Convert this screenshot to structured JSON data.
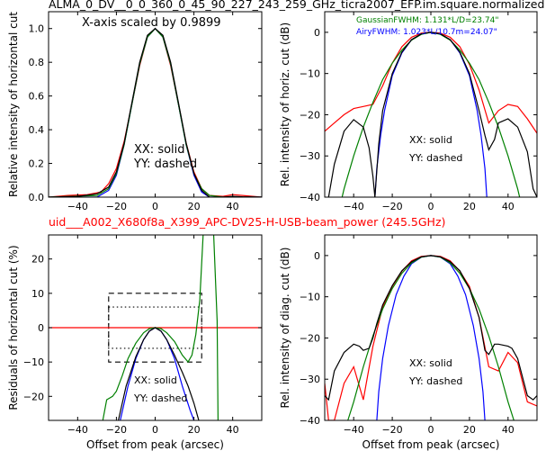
{
  "figure": {
    "title": "ALMA_0_DV__0_0_360_0_45_90_227_243_259_GHz_ticra2007_EFP.im.square.normalized",
    "subtitle": "uid___A002_X680f8a_X399_APC-DV25-H-USB-beam_power (245.5GHz)",
    "subtitle_color": "#ff0000"
  },
  "chart_data": [
    {
      "id": "horizontal_profile",
      "type": "line",
      "ylabel": "Relative intensity of horizontal cut",
      "xlim": [
        -55,
        55
      ],
      "ylim": [
        0,
        1.1
      ],
      "xticks": [
        -40,
        -20,
        0,
        20,
        40
      ],
      "yticks": [
        0.0,
        0.2,
        0.4,
        0.6,
        0.8,
        1.0
      ],
      "ytick_labels": [
        "0.0",
        "0.2",
        "0.4",
        "0.6",
        "0.8",
        "1.0"
      ],
      "annotation": "X-axis scaled by 0.9899",
      "legend_text": [
        "XX: solid",
        "YY: dashed"
      ],
      "series": [
        {
          "color": "#ff0000",
          "x": [
            -55,
            -45,
            -35,
            -28,
            -24,
            -20,
            -16,
            -12,
            -8,
            -4,
            0,
            4,
            8,
            12,
            16,
            20,
            24,
            28,
            35,
            40,
            45,
            55
          ],
          "y": [
            0.0,
            0.01,
            0.015,
            0.03,
            0.08,
            0.17,
            0.33,
            0.55,
            0.78,
            0.95,
            1.0,
            0.95,
            0.78,
            0.55,
            0.32,
            0.15,
            0.05,
            0.01,
            0.005,
            0.015,
            0.01,
            0.0
          ]
        },
        {
          "color": "#0000ff",
          "x": [
            -55,
            -30,
            -24,
            -20,
            -16,
            -12,
            -8,
            -4,
            0,
            4,
            8,
            12,
            16,
            20,
            24,
            28,
            55
          ],
          "y": [
            0.0,
            0.0,
            0.04,
            0.13,
            0.31,
            0.55,
            0.79,
            0.95,
            1.0,
            0.95,
            0.79,
            0.55,
            0.31,
            0.13,
            0.03,
            0.0,
            0.0
          ]
        },
        {
          "color": "#008000",
          "x": [
            -55,
            -30,
            -24,
            -20,
            -16,
            -12,
            -8,
            -4,
            0,
            4,
            8,
            12,
            16,
            20,
            24,
            28,
            35,
            55
          ],
          "y": [
            0.0,
            0.01,
            0.05,
            0.14,
            0.31,
            0.55,
            0.79,
            0.95,
            1.0,
            0.95,
            0.79,
            0.55,
            0.31,
            0.14,
            0.05,
            0.01,
            0.0,
            0.0
          ]
        },
        {
          "color": "#000000",
          "x": [
            -55,
            -40,
            -30,
            -24,
            -20,
            -16,
            -12,
            -8,
            -4,
            0,
            4,
            8,
            12,
            16,
            20,
            24,
            28,
            35,
            40,
            45,
            55
          ],
          "y": [
            0.0,
            0.005,
            0.02,
            0.06,
            0.15,
            0.32,
            0.56,
            0.8,
            0.96,
            1.0,
            0.96,
            0.8,
            0.56,
            0.32,
            0.14,
            0.04,
            0.0,
            0.0,
            0.005,
            0.002,
            0.0
          ]
        }
      ]
    },
    {
      "id": "horizontal_db",
      "type": "line",
      "ylabel": "Rel. intensity of horiz. cut (dB)",
      "xlim": [
        -55,
        55
      ],
      "ylim": [
        -40,
        5
      ],
      "xticks": [
        -40,
        -20,
        0,
        20,
        40
      ],
      "yticks": [
        -40,
        -30,
        -20,
        -10,
        0
      ],
      "ytick_labels": [
        "−40",
        "−30",
        "−20",
        "−10",
        "0"
      ],
      "gaussian_label": "GaussianFWHM: 1.131*L/D=23.74\"",
      "gaussian_color": "#008000",
      "airy_label": "AiryFWHM: 1.023*L/10.7m=24.07\"",
      "airy_color": "#0000ff",
      "legend_text": [
        "XX: solid",
        "YY: dashed"
      ],
      "series": [
        {
          "color": "#ff0000",
          "x": [
            -55,
            -50,
            -45,
            -40,
            -35,
            -30,
            -25,
            -20,
            -15,
            -10,
            -5,
            0,
            5,
            10,
            15,
            20,
            25,
            30,
            35,
            40,
            45,
            50,
            55
          ],
          "y": [
            -24,
            -22,
            -20,
            -18.5,
            -18,
            -17.5,
            -13,
            -7.5,
            -3.5,
            -1.2,
            -0.2,
            0,
            -0.2,
            -1.2,
            -3.5,
            -7.8,
            -14,
            -22,
            -19,
            -17.5,
            -18,
            -21,
            -24.5
          ]
        },
        {
          "color": "#0000ff",
          "x": [
            -29,
            -28,
            -26,
            -24,
            -20,
            -15,
            -10,
            -5,
            0,
            5,
            10,
            15,
            20,
            24,
            26,
            28,
            29
          ],
          "y": [
            -40,
            -33,
            -25,
            -19,
            -10.5,
            -5,
            -1.8,
            -0.4,
            0,
            -0.4,
            -1.8,
            -5,
            -10.5,
            -19,
            -25,
            -33,
            -40
          ]
        },
        {
          "color": "#008000",
          "x": [
            -50,
            -45,
            -40,
            -35,
            -30,
            -25,
            -20,
            -15,
            -10,
            -5,
            0,
            5,
            10,
            15,
            20,
            25,
            30,
            35,
            40,
            45,
            50
          ],
          "y": [
            -48,
            -38,
            -30,
            -23,
            -17,
            -11.5,
            -7.5,
            -4.3,
            -1.9,
            -0.5,
            0,
            -0.5,
            -1.9,
            -4.3,
            -7.5,
            -11.5,
            -17,
            -23,
            -30,
            -38,
            -48
          ]
        },
        {
          "color": "#000000",
          "x": [
            -53,
            -50,
            -45,
            -40,
            -35,
            -32,
            -30,
            -29,
            -27,
            -25,
            -20,
            -15,
            -10,
            -5,
            0,
            5,
            10,
            15,
            20,
            25,
            28,
            30,
            33,
            35,
            40,
            45,
            50,
            53,
            55
          ],
          "y": [
            -40,
            -32,
            -24,
            -21.2,
            -23,
            -28,
            -35,
            -40,
            -27,
            -19,
            -10,
            -4.8,
            -1.8,
            -0.4,
            0,
            -0.4,
            -1.8,
            -4.8,
            -10,
            -19,
            -25,
            -28.5,
            -26,
            -22,
            -21,
            -23,
            -29,
            -38,
            -40
          ]
        }
      ]
    },
    {
      "id": "residuals",
      "type": "line",
      "ylabel": "Residuals of horizontal cut (%)",
      "xlabel": "Offset from peak (arcsec)",
      "xlim": [
        -55,
        55
      ],
      "ylim": [
        -27,
        27
      ],
      "xticks": [
        -40,
        -20,
        0,
        20,
        40
      ],
      "yticks": [
        -20,
        -10,
        0,
        10,
        20
      ],
      "ytick_labels": [
        "−20",
        "−10",
        "0",
        "10",
        "20"
      ],
      "legend_text": [
        "XX: solid",
        "YY: dashed"
      ],
      "boxes": [
        {
          "style": "dashed",
          "x": [
            -24,
            24
          ],
          "y": [
            -10,
            10
          ]
        },
        {
          "style": "dotted",
          "x": [
            -24,
            24
          ],
          "y": [
            -6,
            6
          ]
        }
      ],
      "series": [
        {
          "color": "#ff0000",
          "x": [
            -55,
            55
          ],
          "y": [
            0,
            0
          ]
        },
        {
          "color": "#0000ff",
          "x": [
            -18,
            -14,
            -10,
            -6,
            -3,
            0,
            3,
            6,
            10,
            14,
            18,
            20,
            22
          ],
          "y": [
            -27,
            -17,
            -9,
            -3.5,
            -1,
            0,
            -1,
            -3.5,
            -9,
            -17,
            -24,
            -27,
            -30
          ]
        },
        {
          "color": "#008000",
          "x": [
            -28,
            -27,
            -25,
            -22,
            -20,
            -17,
            -14,
            -10,
            -6,
            -3,
            0,
            3,
            6,
            10,
            14,
            17,
            19,
            21,
            23,
            25,
            30,
            32,
            32.5
          ],
          "y": [
            -30,
            -27,
            -21,
            -20,
            -18.5,
            -14,
            -9,
            -4.5,
            -1.5,
            -0.3,
            0,
            -0.3,
            -1.5,
            -4,
            -8,
            -10,
            -8,
            -2,
            8,
            30,
            30,
            2,
            -30
          ]
        },
        {
          "color": "#000000",
          "x": [
            -19,
            -15,
            -10,
            -6,
            -3,
            0,
            3,
            6,
            10,
            14,
            17,
            20,
            22,
            23
          ],
          "y": [
            -27,
            -17,
            -8.5,
            -3.5,
            -1,
            0,
            -1,
            -3.5,
            -8,
            -13,
            -17,
            -22,
            -26,
            -28
          ]
        }
      ]
    },
    {
      "id": "diagonal_db",
      "type": "line",
      "ylabel": "Rel. intensity of diag. cut (dB)",
      "xlabel": "Offset from peak (arcsec)",
      "xlim": [
        -55,
        55
      ],
      "ylim": [
        -40,
        5
      ],
      "xticks": [
        -40,
        -20,
        0,
        20,
        40
      ],
      "yticks": [
        -40,
        -30,
        -20,
        -10,
        0
      ],
      "ytick_labels": [
        "−40",
        "−30",
        "−20",
        "−10",
        "0"
      ],
      "legend_text": [
        "XX: solid",
        "YY: dashed"
      ],
      "series": [
        {
          "color": "#ff0000",
          "x": [
            -55,
            -53,
            -50,
            -45,
            -40,
            -35,
            -30,
            -25,
            -20,
            -15,
            -10,
            -5,
            0,
            5,
            10,
            15,
            20,
            25,
            30,
            35,
            40,
            45,
            50,
            55
          ],
          "y": [
            -31,
            -40,
            -40,
            -31,
            -27,
            -35,
            -22,
            -12.5,
            -7.5,
            -3.8,
            -1.3,
            -0.2,
            0,
            -0.2,
            -1.3,
            -3.8,
            -7.5,
            -15,
            -27,
            -28,
            -23.5,
            -26,
            -35.5,
            -36.5
          ]
        },
        {
          "color": "#0000ff",
          "x": [
            -28,
            -27,
            -25,
            -22,
            -18,
            -14,
            -10,
            -5,
            0,
            5,
            10,
            14,
            18,
            22,
            25,
            27,
            28
          ],
          "y": [
            -40,
            -33,
            -25,
            -17,
            -9.5,
            -5,
            -2,
            -0.4,
            0,
            -0.4,
            -2,
            -5,
            -9.5,
            -17,
            -25,
            -33,
            -40
          ]
        },
        {
          "color": "#008000",
          "x": [
            -43,
            -40,
            -35,
            -30,
            -25,
            -20,
            -15,
            -10,
            -5,
            0,
            5,
            10,
            15,
            20,
            25,
            30,
            35,
            40,
            43
          ],
          "y": [
            -40,
            -35.5,
            -27,
            -19.5,
            -13,
            -8,
            -4.3,
            -1.8,
            -0.4,
            0,
            -0.4,
            -1.8,
            -4.3,
            -8,
            -13,
            -19.5,
            -27,
            -35.5,
            -40
          ]
        },
        {
          "color": "#000000",
          "x": [
            -55,
            -53,
            -50,
            -45,
            -40,
            -37,
            -35,
            -32,
            -30,
            -28,
            -25,
            -20,
            -15,
            -10,
            -5,
            0,
            5,
            10,
            15,
            20,
            25,
            28,
            30,
            33,
            35,
            40,
            42,
            45,
            50,
            53,
            55
          ],
          "y": [
            -34,
            -35,
            -28,
            -23.5,
            -21.5,
            -22,
            -23,
            -22.5,
            -20,
            -16.5,
            -12,
            -7.3,
            -3.7,
            -1.5,
            -0.3,
            0,
            -0.3,
            -1.5,
            -3.7,
            -8,
            -15,
            -23,
            -24,
            -21.5,
            -21.5,
            -22,
            -22.5,
            -25,
            -34,
            -35,
            -34
          ]
        }
      ]
    }
  ]
}
